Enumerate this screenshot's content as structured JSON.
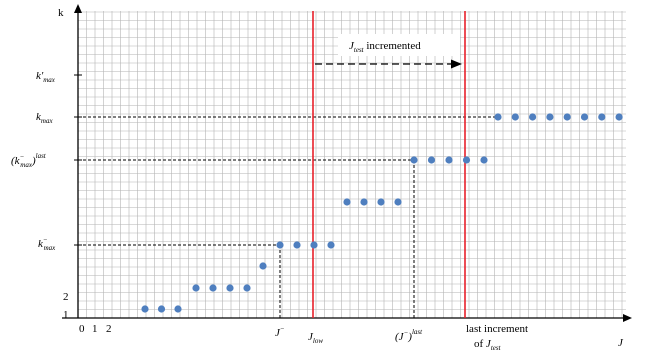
{
  "axes": {
    "y_label": "k",
    "x_label": "J"
  },
  "y_ticks": {
    "k_prime_max": {
      "base": "k'",
      "sub": "max"
    },
    "k_max": {
      "base": "k",
      "sub": "max"
    },
    "k_minus_max_last": {
      "open": "(",
      "base": "k",
      "sup": "−",
      "sub": "max",
      "close": ")",
      "sup2": "last"
    },
    "k_minus_max": {
      "base": "k",
      "sup": "−",
      "sub": "max"
    },
    "tick_2": "2",
    "tick_1": "1"
  },
  "x_ticks": {
    "origin": "0",
    "one": "1",
    "two": "2",
    "j_minus": {
      "base": "J",
      "sup": "−"
    },
    "j_low": {
      "base": "J",
      "sub": "low"
    },
    "j_minus_last": {
      "open": "(",
      "base": "J",
      "sup": "−",
      "close": ")",
      "sup2": "last"
    },
    "last_increment": {
      "line1": "last increment",
      "line2_prefix": "of ",
      "base": "J",
      "sub": "test"
    }
  },
  "annotation": {
    "base": "J",
    "sub": "test",
    "suffix": " incremented"
  },
  "colors": {
    "grid": "#b4b4b4",
    "red_line": "#e8202a",
    "point": "#4f7fbf",
    "axis": "#000000"
  },
  "point_groups": [
    {
      "count": 3
    },
    {
      "count": 4
    },
    {
      "count": 1
    },
    {
      "count": 4
    },
    {
      "count": 4
    },
    {
      "count": 5
    },
    {
      "count": 8
    }
  ]
}
